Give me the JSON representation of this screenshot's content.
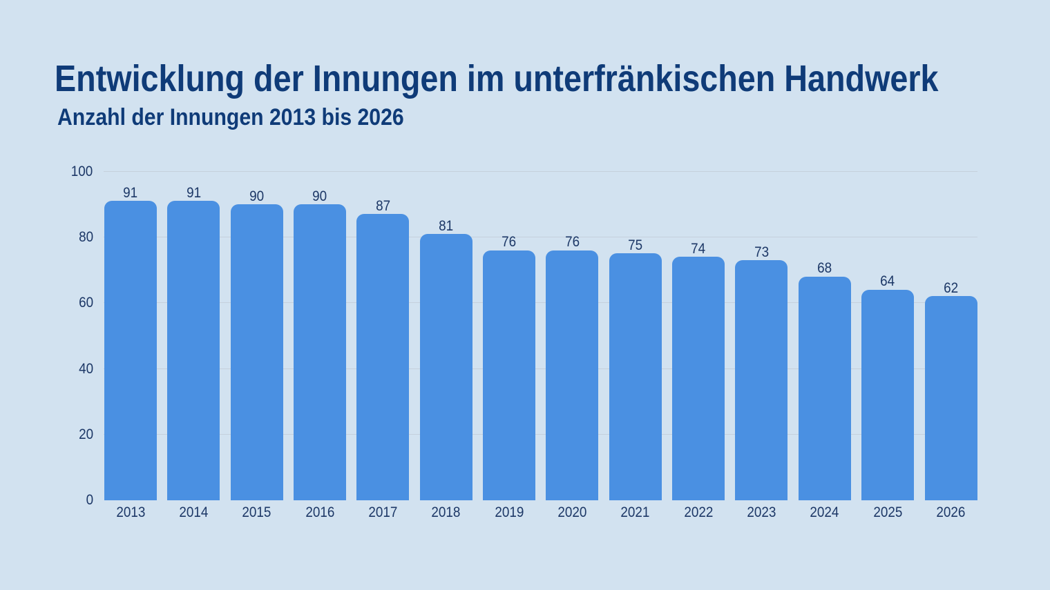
{
  "chart_data": {
    "type": "bar",
    "title": "Entwicklung der Innungen im unterfränkischen Handwerk",
    "subtitle": "Anzahl der Innungen 2013 bis 2026",
    "categories": [
      "2013",
      "2014",
      "2015",
      "2016",
      "2017",
      "2018",
      "2019",
      "2020",
      "2021",
      "2022",
      "2023",
      "2024",
      "2025",
      "2026"
    ],
    "values": [
      91,
      91,
      90,
      90,
      87,
      81,
      76,
      76,
      75,
      74,
      73,
      68,
      64,
      62
    ],
    "xlabel": "",
    "ylabel": "",
    "ylim": [
      0,
      100
    ],
    "yticks": [
      0,
      20,
      40,
      60,
      80,
      100
    ],
    "grid": true,
    "legend": false,
    "colors": {
      "background": "#d2e2f0",
      "bar": "#4a90e2",
      "title_text": "#0f3b78",
      "label_text": "#1c3766",
      "gridline": "#c5d0dc"
    }
  }
}
